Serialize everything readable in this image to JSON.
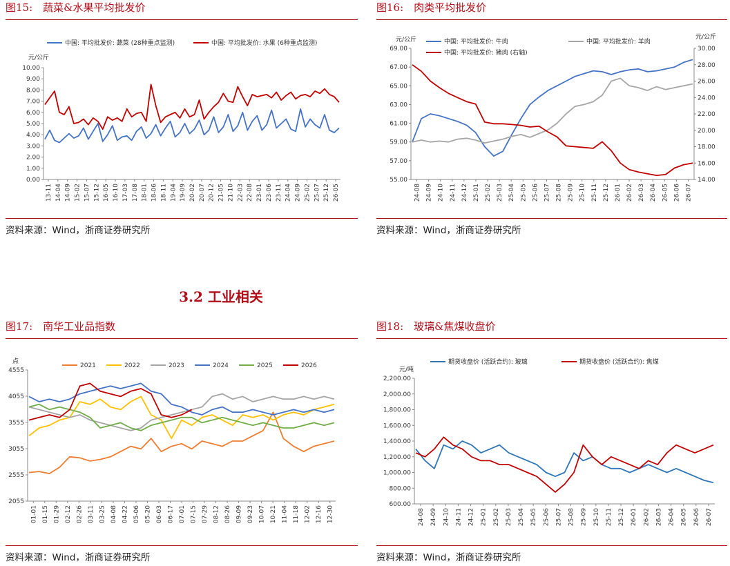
{
  "section_heading": "3.2 工业相关",
  "figures": [
    {
      "title": "图15:　蔬菜&水果平均批发价",
      "source": "资料来源：Wind，浙商证券研究所",
      "chart": {
        "type": "line",
        "unit_left": "元/公斤",
        "y_ticks": [
          "10.00",
          "9.00",
          "8.00",
          "7.00",
          "6.00",
          "5.00",
          "4.00",
          "3.00",
          "2.00",
          "1.00",
          "0.00"
        ],
        "ylim": [
          0,
          10
        ],
        "x_ticks": [
          "13-11",
          "14-04",
          "14-09",
          "15-02",
          "15-07",
          "15-12",
          "16-05",
          "16-10",
          "17-03",
          "17-08",
          "18-01",
          "18-06",
          "18-11",
          "19-04",
          "19-09",
          "20-02",
          "20-07",
          "20-12",
          "21-05",
          "21-10",
          "22-03",
          "22-08",
          "23-01",
          "23-06",
          "23-11",
          "24-04",
          "24-09",
          "25-02",
          "25-07",
          "25-12",
          "26-05"
        ],
        "series": [
          {
            "name": "中国: 平均批发价: 蔬菜 (28种重点监测)",
            "color": "#4472c4",
            "values": [
              3.6,
              4.4,
              3.5,
              3.3,
              3.7,
              4.1,
              3.7,
              3.9,
              4.6,
              3.6,
              4.3,
              5.0,
              3.4,
              4.0,
              4.8,
              3.5,
              3.8,
              3.9,
              3.5,
              4.3,
              4.7,
              3.7,
              4.1,
              4.9,
              3.9,
              4.6,
              5.2,
              3.8,
              4.2,
              5.0,
              4.1,
              4.5,
              5.3,
              4.0,
              4.4,
              5.6,
              4.2,
              4.7,
              5.8,
              4.3,
              4.8,
              6.0,
              4.4,
              5.2,
              5.7,
              4.4,
              4.9,
              6.2,
              4.6,
              5.0,
              5.4,
              4.5,
              4.3,
              6.3,
              4.7,
              5.4,
              4.9,
              4.6,
              5.8,
              4.4,
              4.2,
              4.6
            ]
          },
          {
            "name": "中国: 平均批发价: 水果 (6种重点监测)",
            "color": "#c00000",
            "values": [
              6.7,
              7.3,
              7.9,
              6.0,
              5.8,
              6.5,
              5.0,
              5.1,
              5.4,
              4.9,
              5.5,
              5.2,
              4.5,
              5.6,
              5.3,
              5.5,
              5.2,
              6.3,
              5.6,
              5.9,
              6.0,
              5.2,
              8.5,
              6.6,
              5.1,
              5.6,
              5.8,
              6.0,
              5.5,
              6.3,
              5.6,
              5.8,
              7.1,
              5.4,
              6.0,
              6.5,
              6.9,
              7.7,
              7.0,
              6.9,
              8.3,
              7.4,
              6.6,
              7.6,
              7.4,
              7.5,
              7.6,
              7.3,
              7.8,
              7.1,
              7.5,
              7.8,
              7.2,
              7.5,
              7.6,
              7.4,
              7.9,
              7.7,
              8.1,
              7.6,
              7.4,
              6.9
            ]
          }
        ]
      }
    },
    {
      "title": "图16:　肉类平均批发价",
      "source": "资料来源：Wind，浙商证券研究所",
      "chart": {
        "type": "line",
        "unit_left": "元/公斤",
        "unit_right": "元/公斤",
        "y_ticks": [
          "69.00",
          "67.00",
          "65.00",
          "63.00",
          "61.00",
          "59.00",
          "57.00",
          "55.00"
        ],
        "ylim": [
          55,
          69
        ],
        "y2_ticks": [
          "30.00",
          "28.00",
          "26.00",
          "24.00",
          "22.00",
          "20.00",
          "18.00",
          "16.00",
          "14.00"
        ],
        "y2lim": [
          14,
          30
        ],
        "x_ticks": [
          "24-08",
          "24-09",
          "24-10",
          "24-11",
          "24-12",
          "25-01",
          "25-02",
          "25-03",
          "25-04",
          "25-05",
          "25-06",
          "25-07",
          "25-08",
          "25-09",
          "25-10",
          "25-11",
          "25-12",
          "26-01",
          "26-02",
          "26-03",
          "26-04",
          "26-05",
          "26-06",
          "26-07"
        ],
        "series": [
          {
            "name": "中国: 平均批发价: 牛肉",
            "color": "#4472c4",
            "axis": "left",
            "values": [
              59.0,
              61.5,
              62.0,
              61.8,
              61.5,
              61.2,
              60.8,
              60.0,
              58.5,
              57.5,
              58.0,
              59.8,
              61.5,
              63.0,
              63.8,
              64.5,
              65.0,
              65.5,
              66.0,
              66.3,
              66.6,
              66.5,
              66.2,
              66.5,
              66.7,
              66.8,
              66.5,
              66.6,
              66.8,
              67.0,
              67.5,
              67.8
            ]
          },
          {
            "name": "中国: 平均批发价: 羊肉",
            "color": "#a6a6a6",
            "axis": "left",
            "values": [
              59.0,
              59.2,
              59.0,
              59.1,
              59.0,
              59.3,
              59.4,
              59.2,
              58.9,
              59.1,
              59.3,
              59.6,
              59.8,
              59.5,
              59.9,
              60.3,
              61.0,
              62.0,
              62.8,
              63.0,
              63.3,
              64.0,
              65.5,
              65.8,
              65.0,
              64.8,
              64.5,
              64.9,
              64.6,
              64.8,
              65.0,
              65.2
            ]
          },
          {
            "name": "中国: 平均批发价: 猪肉 (右轴)",
            "color": "#c00000",
            "axis": "right",
            "values": [
              28.0,
              27.2,
              26.0,
              25.2,
              24.5,
              24.0,
              23.5,
              23.2,
              21.0,
              20.8,
              20.8,
              20.7,
              20.6,
              20.4,
              20.5,
              19.8,
              19.2,
              18.1,
              18.0,
              17.9,
              17.8,
              18.6,
              17.5,
              16.0,
              15.2,
              14.9,
              14.7,
              14.5,
              14.6,
              15.4,
              15.8,
              16.0
            ]
          }
        ]
      }
    },
    {
      "title": "图17:　南华工业品指数",
      "source": "资料来源：Wind，浙商证券研究所",
      "chart": {
        "type": "line",
        "unit_left": "点",
        "y_ticks": [
          "4555",
          "4055",
          "3555",
          "3055",
          "2555",
          "2055"
        ],
        "ylim": [
          2055,
          4555
        ],
        "x_ticks": [
          "01-01",
          "01-15",
          "01-29",
          "02-12",
          "02-26",
          "03-11",
          "03-25",
          "04-08",
          "04-22",
          "05-06",
          "05-20",
          "06-03",
          "06-17",
          "07-01",
          "07-15",
          "07-29",
          "08-12",
          "08-26",
          "09-09",
          "09-23",
          "10-07",
          "10-21",
          "11-04",
          "11-18",
          "12-02",
          "12-16",
          "12-30"
        ],
        "series": [
          {
            "name": "2021",
            "color": "#ed7d31",
            "values": [
              2600,
              2620,
              2580,
              2700,
              2900,
              2880,
              2820,
              2850,
              2900,
              3000,
              3100,
              3050,
              3250,
              3000,
              3100,
              3150,
              3050,
              3200,
              3150,
              3100,
              3200,
              3200,
              3300,
              3400,
              3750,
              3250,
              3100,
              3000,
              3100,
              3150,
              3200
            ]
          },
          {
            "name": "2022",
            "color": "#ffc000",
            "values": [
              3300,
              3450,
              3500,
              3600,
              3650,
              3950,
              3900,
              4000,
              3850,
              3800,
              3950,
              4050,
              3700,
              3600,
              3250,
              3600,
              3500,
              3650,
              3700,
              3600,
              3500,
              3700,
              3650,
              3700,
              3600,
              3700,
              3750,
              3700,
              3800,
              3850,
              3900
            ]
          },
          {
            "name": "2023",
            "color": "#a5a5a5",
            "values": [
              3850,
              3800,
              3750,
              3700,
              3650,
              3700,
              3600,
              3550,
              3500,
              3450,
              3400,
              3450,
              3600,
              3650,
              3700,
              3750,
              3800,
              3850,
              4050,
              4100,
              4000,
              4050,
              3950,
              4000,
              4050,
              4000,
              4000,
              4050,
              4000,
              4050,
              4000
            ]
          },
          {
            "name": "2024",
            "color": "#4472c4",
            "values": [
              4050,
              3950,
              4000,
              3950,
              4000,
              4100,
              4150,
              4200,
              4250,
              4200,
              4250,
              4300,
              4150,
              4100,
              3900,
              3850,
              3750,
              3700,
              3800,
              3850,
              3750,
              3750,
              3800,
              3750,
              3700,
              3750,
              3800,
              3750,
              3800,
              3750,
              3800
            ]
          },
          {
            "name": "2025",
            "color": "#70ad47",
            "values": [
              3850,
              3900,
              3800,
              3850,
              3800,
              3750,
              3650,
              3450,
              3500,
              3550,
              3450,
              3400,
              3500,
              3550,
              3600,
              3650,
              3650,
              3550,
              3600,
              3650,
              3600,
              3550,
              3500,
              3550,
              3500,
              3450,
              3450,
              3500,
              3550,
              3500,
              3550
            ]
          },
          {
            "name": "2026",
            "color": "#c00000",
            "values": [
              3600,
              3650,
              3700,
              3650,
              3800,
              4250,
              4300,
              4150,
              4100,
              4050,
              4150,
              4200,
              4100,
              3700,
              3650,
              3700,
              3800
            ]
          }
        ]
      }
    },
    {
      "title": "图18:　玻璃&焦煤收盘价",
      "source": "资料来源：Wind，浙商证券研究所",
      "chart": {
        "type": "line",
        "unit_left": "元/吨",
        "y_ticks": [
          "2,200.00",
          "2,000.00",
          "1,800.00",
          "1,600.00",
          "1,400.00",
          "1,200.00",
          "1,000.00",
          "800.00",
          "600.00"
        ],
        "ylim": [
          600,
          2200
        ],
        "x_ticks": [
          "24-08",
          "24-09",
          "24-10",
          "24-11",
          "24-12",
          "25-01",
          "25-02",
          "25-03",
          "25-04",
          "25-05",
          "25-06",
          "25-07",
          "25-08",
          "25-09",
          "25-10",
          "25-11",
          "25-12",
          "26-01",
          "26-02",
          "26-03",
          "26-04",
          "26-05",
          "26-06",
          "26-07"
        ],
        "series": [
          {
            "name": "期货收盘价 (活跃合约): 玻璃",
            "color": "#2e75b6",
            "values": [
              1300,
              1150,
              1050,
              1350,
              1300,
              1400,
              1350,
              1250,
              1300,
              1350,
              1250,
              1200,
              1150,
              1100,
              1000,
              950,
              1000,
              1250,
              1150,
              1200,
              1100,
              1050,
              1050,
              1000,
              1050,
              1100,
              1050,
              1000,
              1050,
              1000,
              950,
              900,
              870
            ]
          },
          {
            "name": "期货收盘价 (活跃合约): 焦煤",
            "color": "#c00000",
            "values": [
              1250,
              1200,
              1300,
              1450,
              1350,
              1300,
              1200,
              1150,
              1150,
              1100,
              1100,
              1050,
              1000,
              950,
              850,
              750,
              850,
              1000,
              1350,
              1200,
              1100,
              1200,
              1150,
              1100,
              1050,
              1150,
              1100,
              1250,
              1350,
              1300,
              1250,
              1300,
              1350
            ]
          }
        ]
      }
    }
  ]
}
